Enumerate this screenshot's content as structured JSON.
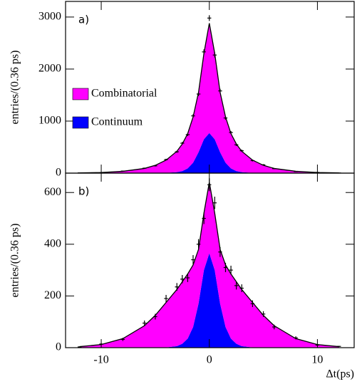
{
  "chart_data": [
    {
      "type": "area",
      "label": "a)",
      "y_label": "entries/(0.36 ps)",
      "legend": "left",
      "xlim": [
        -13.3,
        13.4
      ],
      "xticks": [
        -10,
        0,
        10
      ],
      "ylim": [
        0,
        3300
      ],
      "yticks": [
        0,
        1000,
        2000,
        3000
      ],
      "x": [
        -12,
        -10,
        -8,
        -6,
        -5,
        -4,
        -3,
        -2.5,
        -2,
        -1.5,
        -1,
        -0.5,
        0,
        0.5,
        1,
        1.5,
        2,
        2.5,
        3,
        4,
        5,
        6,
        8,
        10,
        12
      ],
      "series": [
        {
          "name": "Continuum",
          "color": "#0000ff",
          "values": [
            0,
            0,
            0,
            0,
            2,
            5,
            18,
            40,
            90,
            200,
            400,
            650,
            770,
            650,
            400,
            200,
            90,
            40,
            18,
            5,
            2,
            0,
            0,
            0,
            0
          ]
        },
        {
          "name": "Combinatorial",
          "color": "#ff00ff",
          "values": [
            4,
            12,
            35,
            90,
            148,
            245,
            402,
            520,
            670,
            880,
            1150,
            1650,
            2110,
            1650,
            1150,
            880,
            670,
            520,
            402,
            245,
            148,
            90,
            35,
            12,
            4
          ]
        }
      ],
      "points": {
        "values": [
          5,
          10,
          40,
          95,
          140,
          260,
          410,
          575,
          740,
          1100,
          1520,
          2330,
          2980,
          2270,
          1580,
          1060,
          780,
          545,
          430,
          240,
          160,
          85,
          30,
          14,
          3
        ],
        "errors": [
          2,
          3,
          6,
          10,
          12,
          16,
          20,
          24,
          27,
          33,
          39,
          48,
          55,
          48,
          40,
          33,
          28,
          23,
          21,
          15,
          13,
          9,
          5,
          4,
          2
        ]
      }
    },
    {
      "type": "area",
      "label": "b)",
      "y_label": "entries/(0.36 ps)",
      "x_label": "Δt(ps)",
      "xlim": [
        -13.3,
        13.4
      ],
      "xticks": [
        -10,
        0,
        10
      ],
      "ylim": [
        0,
        675
      ],
      "yticks": [
        0,
        200,
        400,
        600
      ],
      "x": [
        -12,
        -10,
        -8,
        -6,
        -5,
        -4,
        -3,
        -2.5,
        -2,
        -1.5,
        -1,
        -0.5,
        0,
        0.5,
        1,
        1.5,
        2,
        2.5,
        3,
        4,
        5,
        6,
        8,
        10,
        12
      ],
      "series": [
        {
          "color": "#0000ff",
          "values": [
            0,
            0,
            0,
            0,
            0,
            1,
            6,
            15,
            35,
            80,
            170,
            300,
            365,
            300,
            170,
            80,
            35,
            15,
            6,
            1,
            0,
            0,
            0,
            0,
            0
          ]
        },
        {
          "color": "#ff00ff",
          "values": [
            4,
            12,
            35,
            85,
            125,
            174,
            219,
            240,
            250,
            240,
            210,
            220,
            275,
            220,
            210,
            240,
            250,
            240,
            219,
            174,
            125,
            85,
            35,
            12,
            4
          ]
        }
      ],
      "points": {
        "values": [
          3,
          14,
          32,
          95,
          120,
          190,
          235,
          265,
          270,
          340,
          400,
          500,
          630,
          560,
          370,
          310,
          300,
          240,
          230,
          170,
          130,
          80,
          38,
          10,
          5
        ],
        "errors": [
          2,
          4,
          6,
          10,
          11,
          14,
          15,
          16,
          16,
          18,
          20,
          22,
          25,
          24,
          19,
          18,
          17,
          15,
          15,
          13,
          11,
          9,
          6,
          3,
          2
        ]
      }
    }
  ]
}
